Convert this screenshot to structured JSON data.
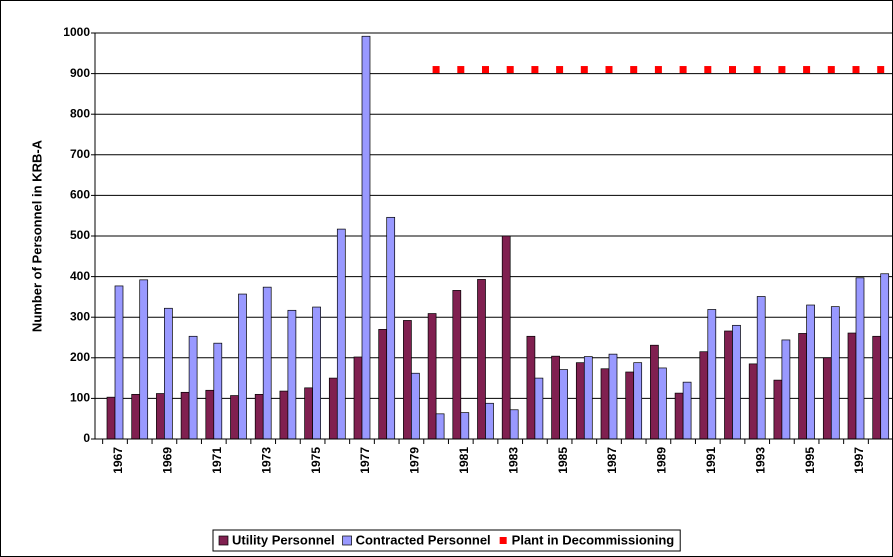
{
  "chart_data": {
    "type": "bar",
    "y_label": "Number of Personnel in KRB-A",
    "categories": [
      "1967",
      null,
      "1969",
      null,
      "1971",
      null,
      "1973",
      null,
      "1975",
      null,
      "1977",
      null,
      "1979",
      null,
      "1981",
      null,
      "1983",
      null,
      "1985",
      null,
      "1987",
      null,
      "1989",
      null,
      "1991",
      null,
      "1993",
      null,
      "1995",
      null,
      "1997",
      null
    ],
    "series": [
      {
        "name": "Utility Personnel",
        "color": "#802050",
        "type": "bar",
        "values": [
          103,
          110,
          112,
          115,
          120,
          107,
          110,
          118,
          126,
          150,
          202,
          270,
          292,
          309,
          366,
          393,
          500,
          253,
          204,
          188,
          173,
          165,
          231,
          113,
          215,
          266,
          185,
          145,
          260,
          200,
          261,
          253
        ]
      },
      {
        "name": "Contracted Personnel",
        "color": "#9999ff",
        "type": "bar",
        "values": [
          377,
          392,
          322,
          253,
          236,
          357,
          374,
          317,
          325,
          517,
          992,
          546,
          162,
          62,
          65,
          88,
          72,
          150,
          171,
          203,
          209,
          188,
          175,
          140,
          319,
          280,
          351,
          244,
          330,
          326,
          397,
          407
        ]
      },
      {
        "name": "Plant in Decommissioning",
        "color": "#ff0000",
        "type": "marker",
        "values": [
          null,
          null,
          null,
          null,
          null,
          null,
          null,
          null,
          null,
          null,
          null,
          null,
          null,
          910,
          910,
          910,
          910,
          910,
          910,
          910,
          910,
          910,
          910,
          910,
          910,
          910,
          910,
          910,
          910,
          910,
          910,
          910
        ]
      }
    ],
    "ylim": [
      0,
      1000
    ],
    "yticks": [
      0,
      100,
      200,
      300,
      400,
      500,
      600,
      700,
      800,
      900,
      1000
    ],
    "grid": true,
    "legend": "bottom"
  }
}
